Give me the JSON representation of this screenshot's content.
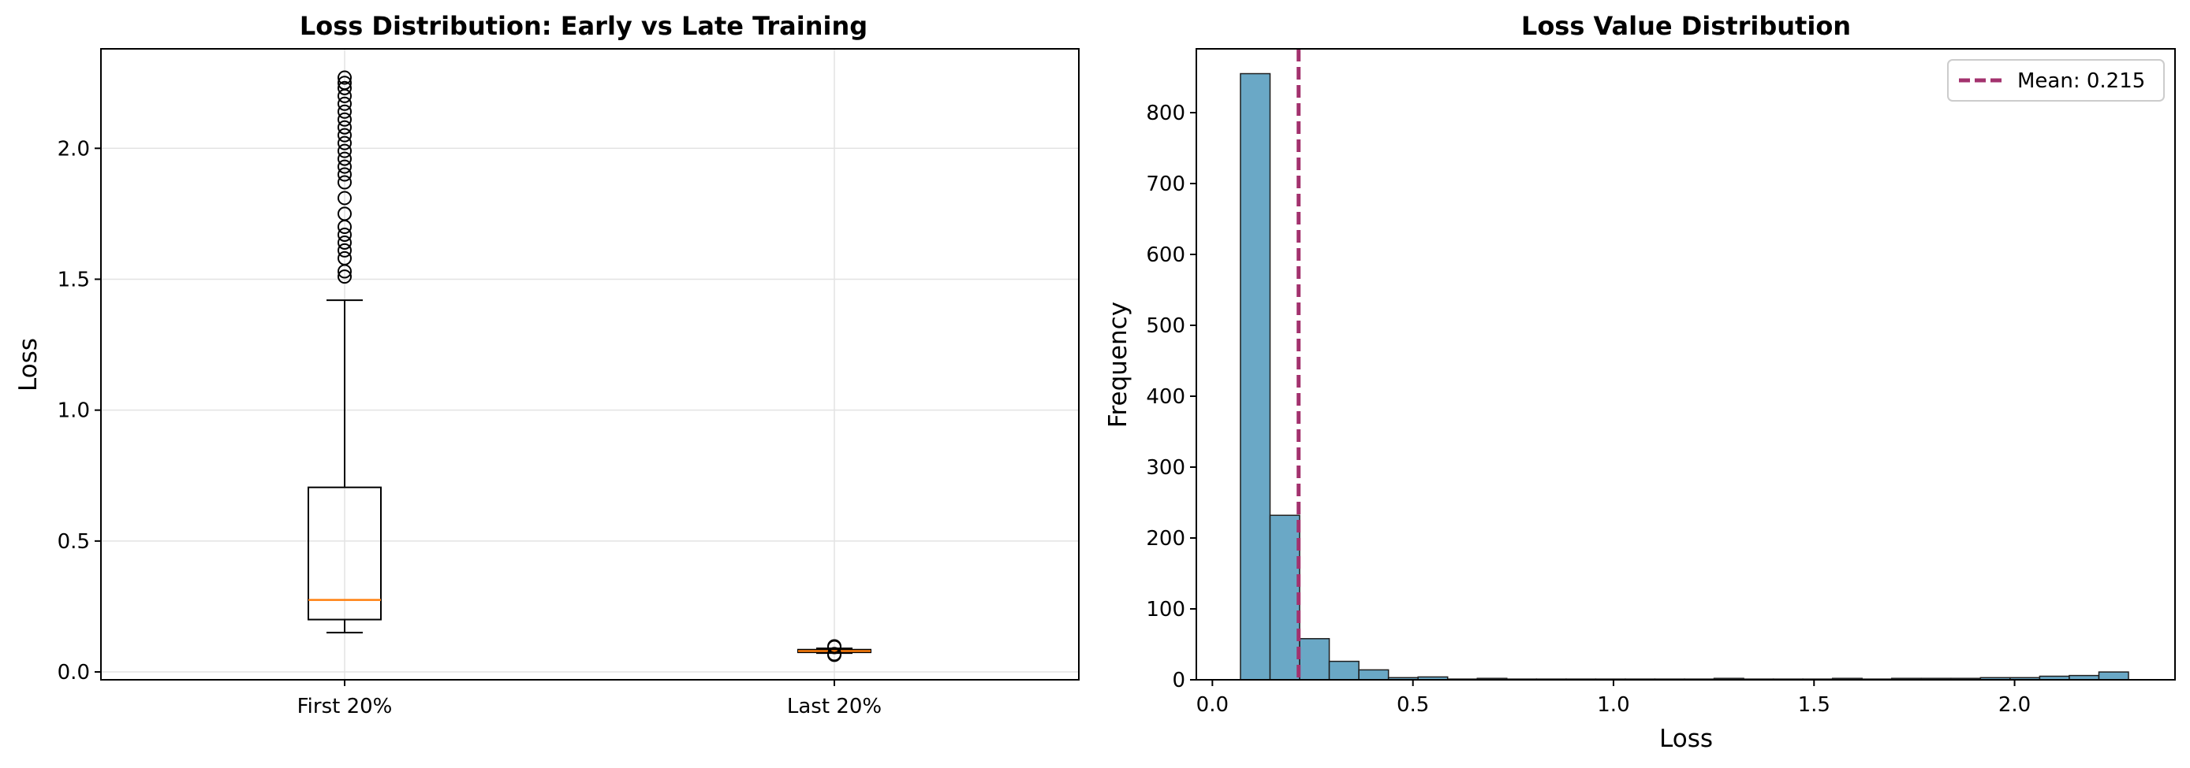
{
  "chart_data": [
    {
      "type": "box",
      "title": "Loss Distribution: Early vs Late Training",
      "xlabel": "",
      "ylabel": "Loss",
      "ylim": [
        -0.03,
        2.38
      ],
      "yticks": [
        0.0,
        0.5,
        1.0,
        1.5,
        2.0
      ],
      "ytick_labels": [
        "0.0",
        "0.5",
        "1.0",
        "1.5",
        "2.0"
      ],
      "grid": true,
      "median_color": "#ff7f0e",
      "boxes": [
        {
          "label": "First 20%",
          "whisker_low": 0.15,
          "q1": 0.2,
          "median": 0.275,
          "q3": 0.705,
          "whisker_high": 1.42,
          "fliers": [
            1.51,
            1.53,
            1.58,
            1.61,
            1.64,
            1.67,
            1.7,
            1.75,
            1.81,
            1.87,
            1.9,
            1.93,
            1.96,
            1.99,
            2.02,
            2.05,
            2.08,
            2.11,
            2.14,
            2.17,
            2.2,
            2.23,
            2.25,
            2.27
          ]
        },
        {
          "label": "Last 20%",
          "whisker_low": 0.072,
          "q1": 0.075,
          "median": 0.08,
          "q3": 0.085,
          "whisker_high": 0.09,
          "fliers": [
            0.065,
            0.068,
            0.095,
            0.098
          ]
        }
      ]
    },
    {
      "type": "histogram",
      "title": "Loss Value Distribution",
      "xlabel": "Loss",
      "ylabel": "Frequency",
      "xlim": [
        -0.04,
        2.4
      ],
      "ylim": [
        0,
        890
      ],
      "xticks": [
        0.0,
        0.5,
        1.0,
        1.5,
        2.0
      ],
      "xtick_labels": [
        "0.0",
        "0.5",
        "1.0",
        "1.5",
        "2.0"
      ],
      "yticks": [
        0,
        100,
        200,
        300,
        400,
        500,
        600,
        700,
        800
      ],
      "ytick_labels": [
        "0",
        "100",
        "200",
        "300",
        "400",
        "500",
        "600",
        "700",
        "800"
      ],
      "bin_start": 0.07,
      "bin_width": 0.0738,
      "counts": [
        855,
        232,
        58,
        26,
        14,
        3,
        4,
        1,
        2,
        1,
        1,
        1,
        1,
        1,
        1,
        1,
        2,
        1,
        1,
        1,
        2,
        1,
        2,
        2,
        2,
        3,
        3,
        5,
        6,
        11
      ],
      "bar_color": "#6aa8c6",
      "mean": 0.215,
      "mean_color": "#a3326e",
      "legend_label": "Mean: 0.215",
      "legend_position": "upper right"
    }
  ]
}
